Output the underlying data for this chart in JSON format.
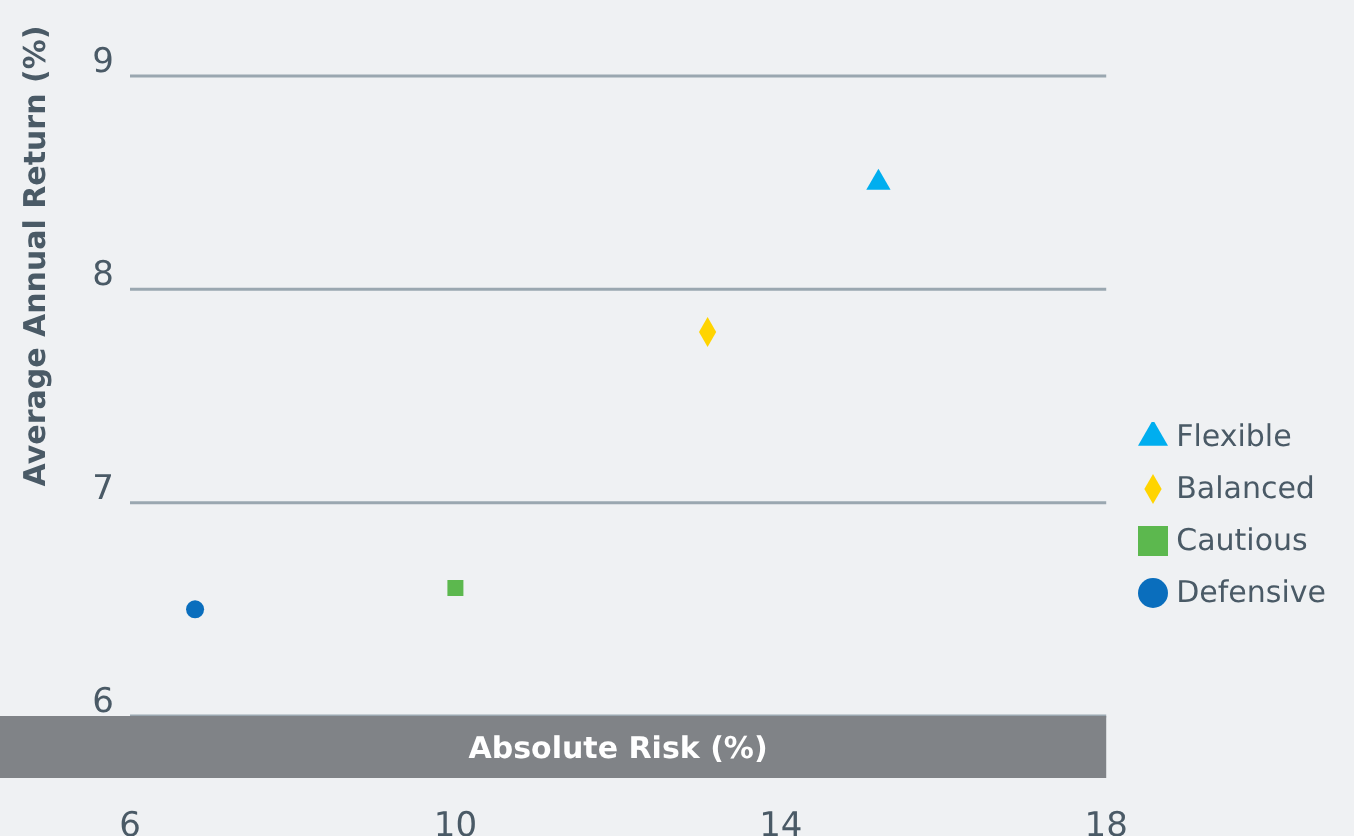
{
  "chart_data": {
    "type": "scatter",
    "xlabel": "Absolute Risk (%)",
    "ylabel": "Average Annual Return (%)",
    "series": [
      {
        "name": "Flexible",
        "color": "#00aeef",
        "marker": "triangle",
        "x": [
          15.2
        ],
        "values": [
          8.5
        ]
      },
      {
        "name": "Balanced",
        "color": "#ffd400",
        "marker": "diamond",
        "x": [
          13.1
        ],
        "values": [
          7.8
        ]
      },
      {
        "name": "Cautious",
        "color": "#5cb84e",
        "marker": "square",
        "x": [
          10.0
        ],
        "values": [
          6.6
        ]
      },
      {
        "name": "Defensive",
        "color": "#0a6ebd",
        "marker": "circle",
        "x": [
          6.8
        ],
        "values": [
          6.5
        ]
      }
    ],
    "xlim": [
      6,
      18
    ],
    "xticks": [
      6,
      10,
      14,
      18
    ],
    "ylim": [
      6,
      9
    ],
    "yticks": [
      6,
      7,
      8,
      9
    ],
    "grid": "y",
    "legend": "right"
  }
}
